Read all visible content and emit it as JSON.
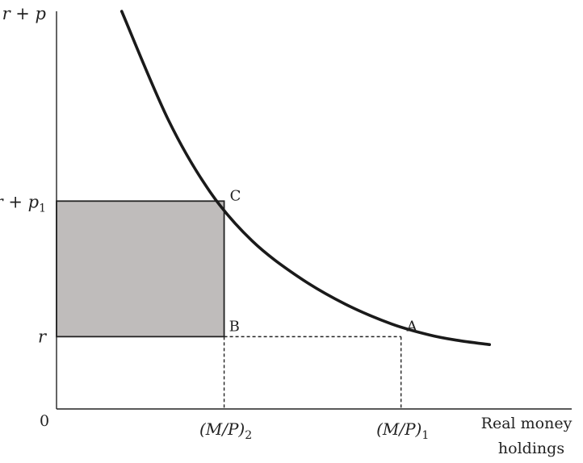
{
  "chart_data": {
    "type": "line",
    "title": "",
    "xlabel_line1": "Real money",
    "xlabel_line2": "holdings",
    "origin_label": "0",
    "y_ticks": [
      {
        "base": "r + p",
        "sub": ""
      },
      {
        "base": "r + p",
        "sub": "1"
      },
      {
        "base": "r",
        "sub": ""
      }
    ],
    "x_ticks": [
      {
        "base": "(M/P)",
        "sub": "2"
      },
      {
        "base": "(M/P)",
        "sub": "1"
      }
    ],
    "points": [
      {
        "label": "C"
      },
      {
        "label": "B"
      },
      {
        "label": "A"
      }
    ],
    "colors": {
      "curve": "#1a1a1a",
      "axes": "#222222",
      "shade_fill": "#bfbcbb",
      "dashed": "#222222"
    },
    "curve_points": [
      {
        "x": 0.14,
        "y": 1.1
      },
      {
        "x": 0.24,
        "y": 0.8
      },
      {
        "x": 0.33,
        "y": 0.6
      },
      {
        "x": 0.42,
        "y": 0.465
      },
      {
        "x": 0.52,
        "y": 0.365
      },
      {
        "x": 0.62,
        "y": 0.29
      },
      {
        "x": 0.72,
        "y": 0.235
      },
      {
        "x": 0.8,
        "y": 0.205
      },
      {
        "x": 0.86,
        "y": 0.19
      },
      {
        "x": 0.93,
        "y": 0.178
      }
    ],
    "levels": {
      "r": 0.2,
      "r_p1": 0.575
    },
    "quantities": {
      "mp2": 0.36,
      "mp1": 0.74
    },
    "xlim": [
      0,
      1.11
    ],
    "ylim": [
      0,
      1.1
    ]
  }
}
